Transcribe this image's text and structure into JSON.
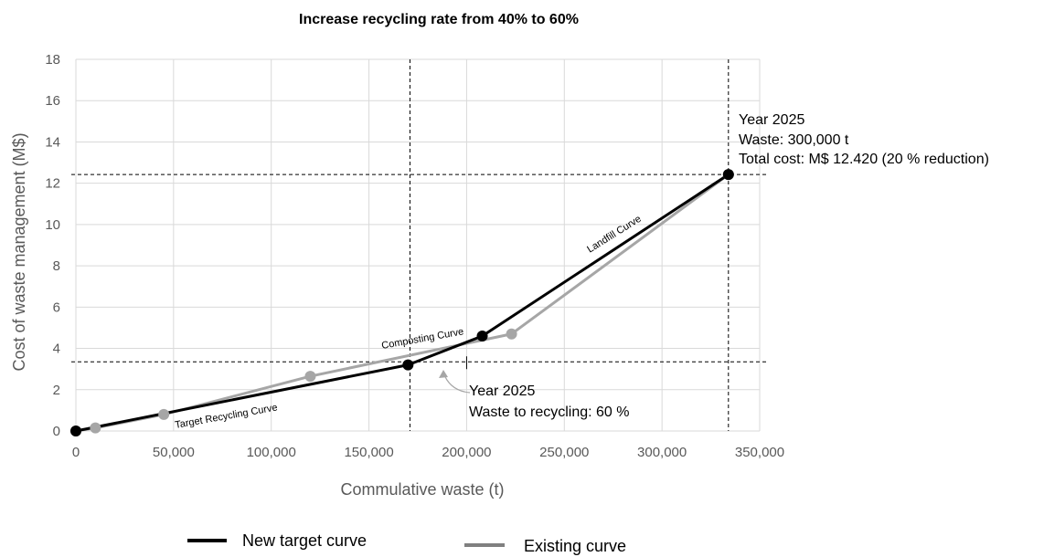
{
  "chart_data": {
    "type": "line",
    "title": "Increase recycling rate from 40% to 60%",
    "xlabel": "Commulative waste (t)",
    "ylabel": "Cost of waste management (M$)",
    "xlim": [
      0,
      350000
    ],
    "ylim": [
      0,
      18
    ],
    "x_ticks": [
      0,
      50000,
      100000,
      150000,
      200000,
      250000,
      300000,
      350000
    ],
    "x_tick_labels": [
      "0",
      "50,000",
      "100,000",
      "150,000",
      "200,000",
      "250,000",
      "300,000",
      "350,000"
    ],
    "y_ticks": [
      0,
      2,
      4,
      6,
      8,
      10,
      12,
      14,
      16,
      18
    ],
    "y_tick_labels": [
      "0",
      "2",
      "4",
      "6",
      "8",
      "10",
      "12",
      "14",
      "16",
      "18"
    ],
    "grid": true,
    "legend_position": "bottom",
    "series": [
      {
        "name": "New target curve",
        "color": "#000000",
        "points": [
          [
            0,
            0
          ],
          [
            170000,
            3.2
          ],
          [
            208000,
            4.6
          ],
          [
            334000,
            12.42
          ]
        ]
      },
      {
        "name": "Existing curve",
        "color": "#a6a6a6",
        "points": [
          [
            0,
            0
          ],
          [
            10000,
            0.15
          ],
          [
            45000,
            0.8
          ],
          [
            120000,
            2.65
          ],
          [
            223000,
            4.7
          ],
          [
            334000,
            12.42
          ]
        ]
      }
    ],
    "reference_lines": [
      {
        "orientation": "vertical",
        "value": 171000
      },
      {
        "orientation": "vertical",
        "value": 334000
      },
      {
        "orientation": "horizontal",
        "value": 12.42
      },
      {
        "orientation": "horizontal",
        "value": 3.35
      }
    ],
    "tick_mark_x": 200000,
    "curve_labels": [
      {
        "text": "Target Recycling Curve"
      },
      {
        "text": "Composting Curve"
      },
      {
        "text": "Landfill Curve"
      }
    ],
    "annotations": [
      {
        "lines": [
          "Year 2025",
          "Waste: 300,000 t",
          "Total cost: M$ 12.420 (20 % reduction)"
        ]
      },
      {
        "lines": [
          "Year 2025",
          "Waste to recycling: 60 %"
        ]
      }
    ]
  }
}
